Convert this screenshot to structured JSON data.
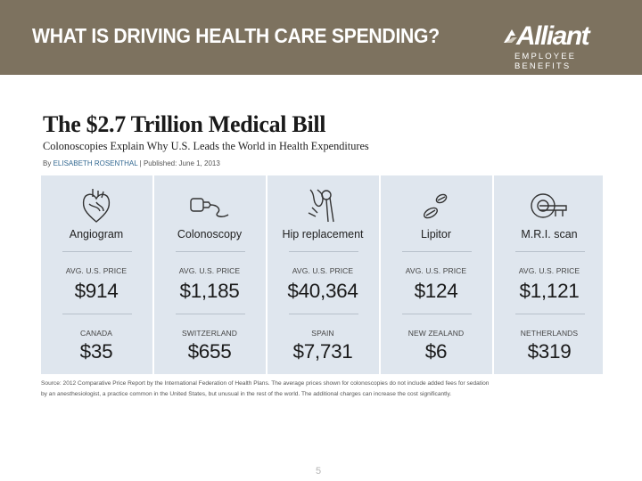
{
  "slide": {
    "title": "WHAT IS DRIVING HEALTH CARE SPENDING?",
    "page_number": "5"
  },
  "logo": {
    "wordmark": "Alliant",
    "tagline": "EMPLOYEE BENEFITS"
  },
  "article": {
    "title": "The $2.7 Trillion Medical Bill",
    "subtitle": "Colonoscopies Explain Why U.S. Leads the World in Health Expenditures",
    "byline_prefix": "By",
    "author": "ELISABETH ROSENTHAL",
    "published": "| Published: June 1, 2013"
  },
  "procedures": [
    {
      "name": "Angiogram",
      "icon": "heart-icon",
      "us_label": "AVG. U.S. PRICE",
      "us_price": "$914",
      "country": "CANADA",
      "country_price": "$35"
    },
    {
      "name": "Colonoscopy",
      "icon": "colonoscope-icon",
      "us_label": "AVG. U.S. PRICE",
      "us_price": "$1,185",
      "country": "SWITZERLAND",
      "country_price": "$655"
    },
    {
      "name": "Hip replacement",
      "icon": "hip-joint-icon",
      "us_label": "AVG. U.S. PRICE",
      "us_price": "$40,364",
      "country": "SPAIN",
      "country_price": "$7,731"
    },
    {
      "name": "Lipitor",
      "icon": "pills-icon",
      "us_label": "AVG. U.S. PRICE",
      "us_price": "$124",
      "country": "NEW ZEALAND",
      "country_price": "$6"
    },
    {
      "name": "M.R.I. scan",
      "icon": "mri-scanner-icon",
      "us_label": "AVG. U.S. PRICE",
      "us_price": "$1,121",
      "country": "NETHERLANDS",
      "country_price": "$319"
    }
  ],
  "source": {
    "line1": "Source: 2012 Comparative Price Report by the International Federation of Health Plans. The average prices shown for colonoscopies do not include added fees for sedation",
    "line2": "by an anesthesiologist, a practice common in the United States, but unusual in the rest of the world. The additional charges can increase the cost significantly."
  },
  "colors": {
    "header_bg": "#7d725f",
    "panel_bg": "#dfe6ee",
    "author_link": "#326891"
  }
}
